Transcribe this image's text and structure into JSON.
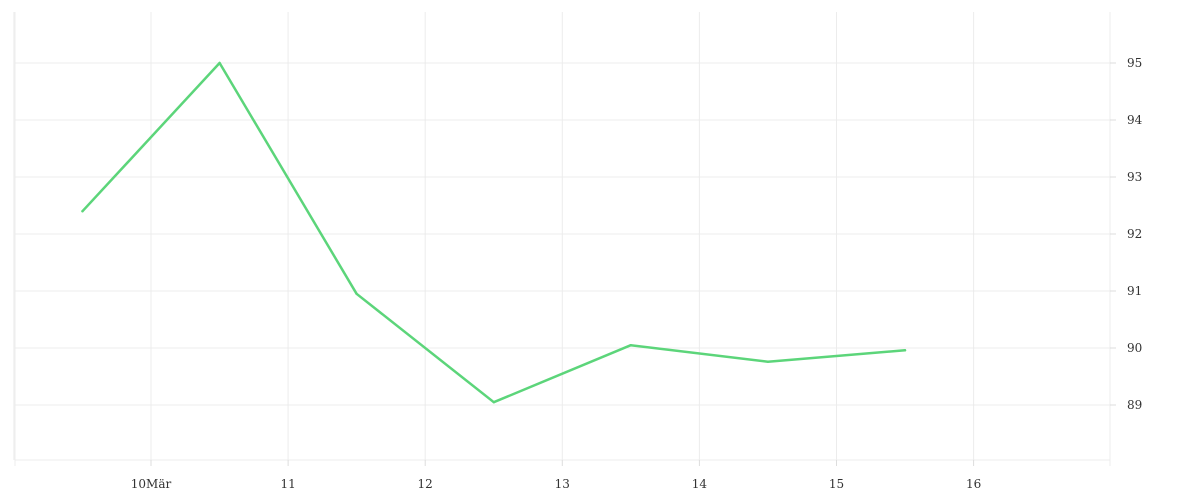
{
  "chart_data": {
    "type": "line",
    "x_tick_labels": [
      "10Mär",
      "11",
      "12",
      "13",
      "14",
      "15",
      "16"
    ],
    "y_tick_labels": [
      "89",
      "90",
      "91",
      "92",
      "93",
      "94",
      "95"
    ],
    "y_ticks": [
      89,
      90,
      91,
      92,
      93,
      94,
      95
    ],
    "ylim": [
      88,
      95.8
    ],
    "x_day_range": [
      9.03,
      17
    ],
    "y_axis_side": "right",
    "grid": true,
    "series": [
      {
        "color": "#5cd57a",
        "x": [
          "2024-03-09T12:00",
          "2024-03-10T12:00",
          "2024-03-11T12:00",
          "2024-03-12T12:00",
          "2024-03-13T12:00",
          "2024-03-14T12:00",
          "2024-03-15T12:00"
        ],
        "values": [
          92.4,
          95.0,
          90.95,
          89.05,
          90.05,
          89.76,
          89.96
        ]
      }
    ],
    "gridline_color": "#ececec",
    "tick_text_color": "#333333"
  }
}
